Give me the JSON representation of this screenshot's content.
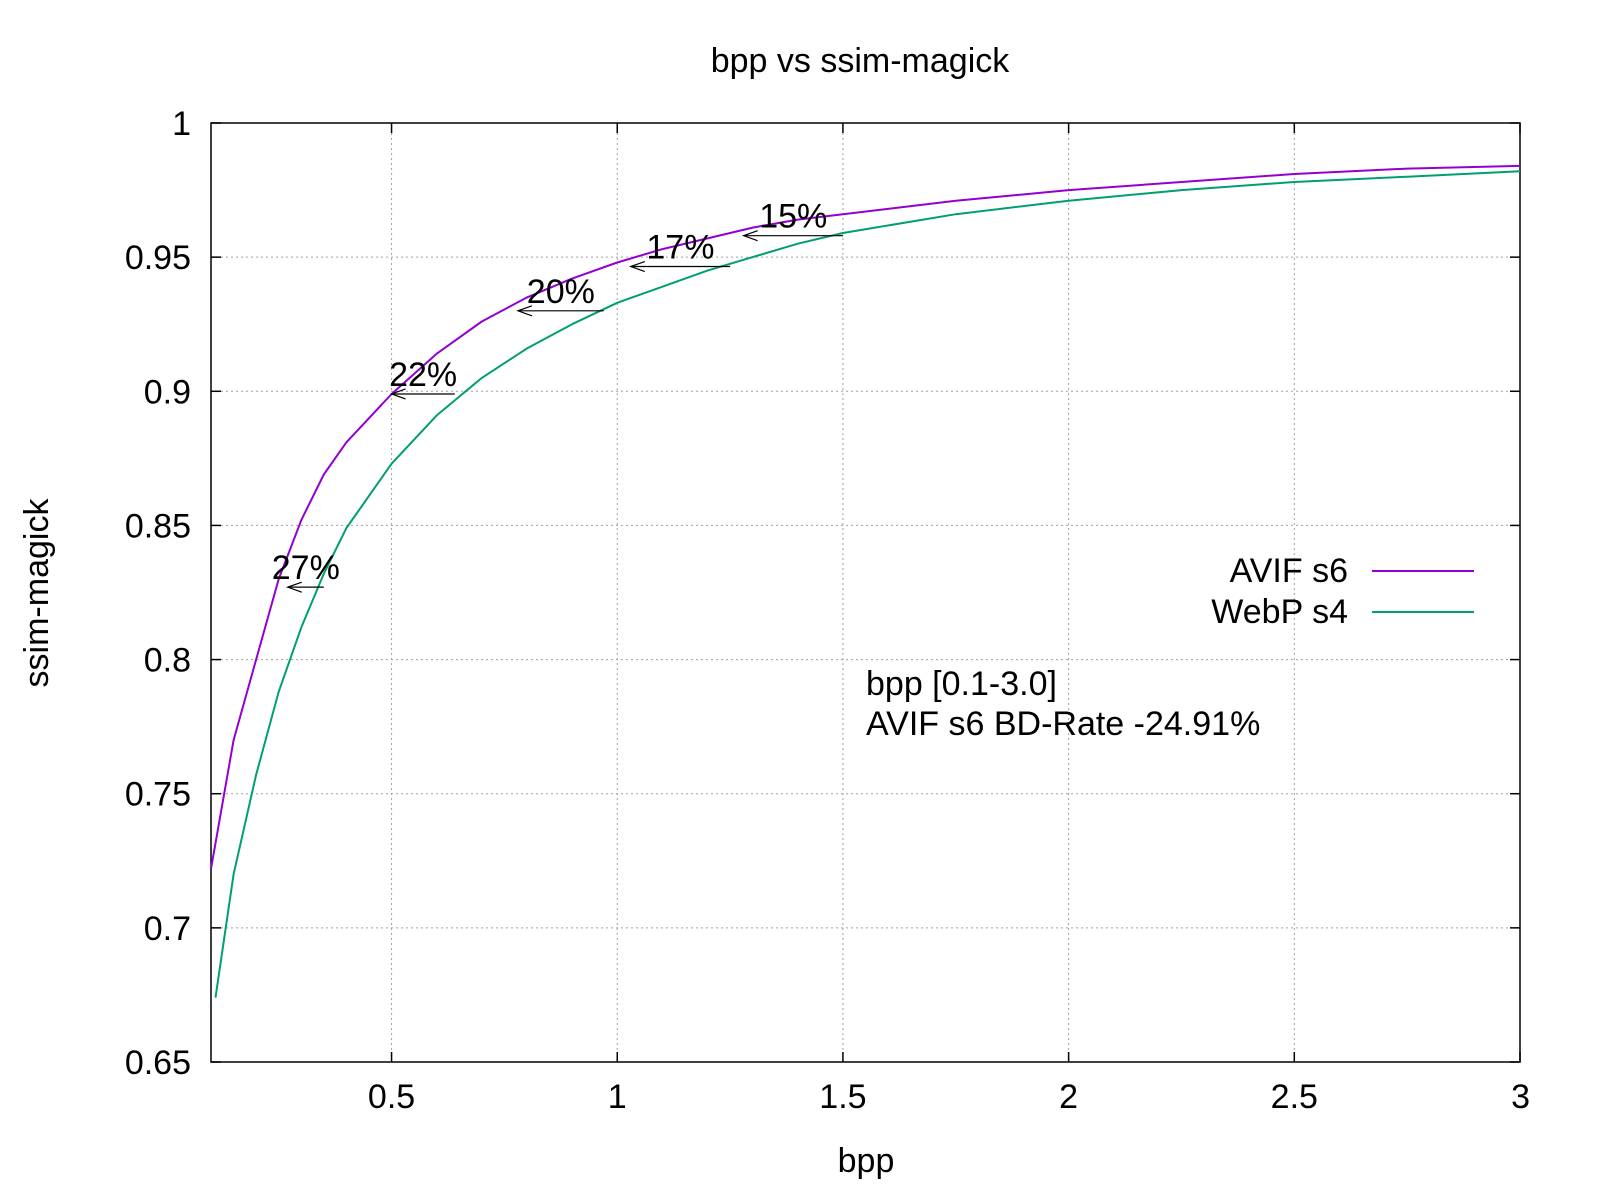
{
  "chart_data": {
    "type": "line",
    "title": "bpp vs ssim-magick",
    "xlabel": "bpp",
    "ylabel": "ssim-magick",
    "xlim": [
      0.1,
      3.0
    ],
    "ylim": [
      0.65,
      1.0
    ],
    "xticks": [
      {
        "v": 0.5,
        "label": "0.5"
      },
      {
        "v": 1.0,
        "label": "1"
      },
      {
        "v": 1.5,
        "label": "1.5"
      },
      {
        "v": 2.0,
        "label": "2"
      },
      {
        "v": 2.5,
        "label": "2.5"
      },
      {
        "v": 3.0,
        "label": "3"
      }
    ],
    "yticks": [
      {
        "v": 0.65,
        "label": "0.65"
      },
      {
        "v": 0.7,
        "label": "0.7"
      },
      {
        "v": 0.75,
        "label": "0.75"
      },
      {
        "v": 0.8,
        "label": "0.8"
      },
      {
        "v": 0.85,
        "label": "0.85"
      },
      {
        "v": 0.9,
        "label": "0.9"
      },
      {
        "v": 0.95,
        "label": "0.95"
      },
      {
        "v": 1.0,
        "label": "1"
      }
    ],
    "grid": true,
    "legend_position": "right",
    "series": [
      {
        "name": "AVIF s6",
        "color": "#9400d3",
        "x": [
          0.1,
          0.15,
          0.2,
          0.25,
          0.3,
          0.35,
          0.4,
          0.5,
          0.6,
          0.7,
          0.8,
          0.9,
          1.0,
          1.1,
          1.2,
          1.3,
          1.4,
          1.5,
          1.75,
          2.0,
          2.25,
          2.5,
          2.75,
          3.0
        ],
        "y": [
          0.722,
          0.77,
          0.8,
          0.83,
          0.852,
          0.869,
          0.881,
          0.899,
          0.914,
          0.926,
          0.935,
          0.942,
          0.948,
          0.953,
          0.957,
          0.961,
          0.964,
          0.966,
          0.971,
          0.975,
          0.978,
          0.981,
          0.983,
          0.984
        ]
      },
      {
        "name": "WebP s4",
        "color": "#009e73",
        "x": [
          0.11,
          0.15,
          0.2,
          0.25,
          0.3,
          0.35,
          0.4,
          0.5,
          0.6,
          0.7,
          0.8,
          0.9,
          1.0,
          1.1,
          1.2,
          1.3,
          1.4,
          1.5,
          1.75,
          2.0,
          2.25,
          2.5,
          2.75,
          3.0
        ],
        "y": [
          0.674,
          0.72,
          0.757,
          0.788,
          0.812,
          0.832,
          0.849,
          0.873,
          0.891,
          0.905,
          0.916,
          0.925,
          0.933,
          0.939,
          0.945,
          0.95,
          0.955,
          0.959,
          0.966,
          0.971,
          0.975,
          0.978,
          0.98,
          0.982
        ]
      }
    ],
    "annotations": [
      {
        "text": "27%",
        "x": 0.27,
        "y": 0.827,
        "x_to": 0.35
      },
      {
        "text": "22%",
        "x": 0.5,
        "y": 0.899,
        "x_to": 0.64
      },
      {
        "text": "20%",
        "x": 0.78,
        "y": 0.93,
        "x_to": 0.97
      },
      {
        "text": "17%",
        "x": 1.03,
        "y": 0.9465,
        "x_to": 1.25
      },
      {
        "text": "15%",
        "x": 1.28,
        "y": 0.958,
        "x_to": 1.5
      }
    ],
    "note": {
      "color": "#00e000",
      "line1": "bpp [0.1-3.0]",
      "line2": "AVIF s6 BD-Rate -24.91%"
    }
  }
}
